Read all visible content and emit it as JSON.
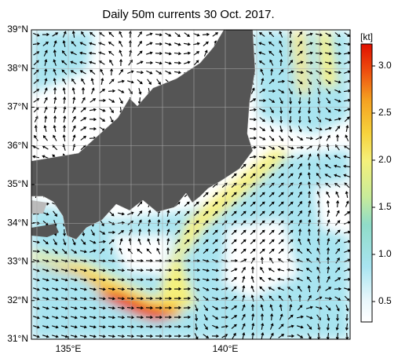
{
  "title": "Daily 50m currents 30 Oct. 2017.",
  "lat_labels": [
    "31°N",
    "32°N",
    "33°N",
    "34°N",
    "35°N",
    "36°N",
    "37°N",
    "38°N",
    "39°N"
  ],
  "lon_labels": [
    "135°E",
    "140°E"
  ],
  "colorbar": {
    "unit": "[kt]",
    "ticks": [
      "0.5",
      "1.0",
      "1.5",
      "2.0",
      "2.5",
      "3.0"
    ]
  }
}
